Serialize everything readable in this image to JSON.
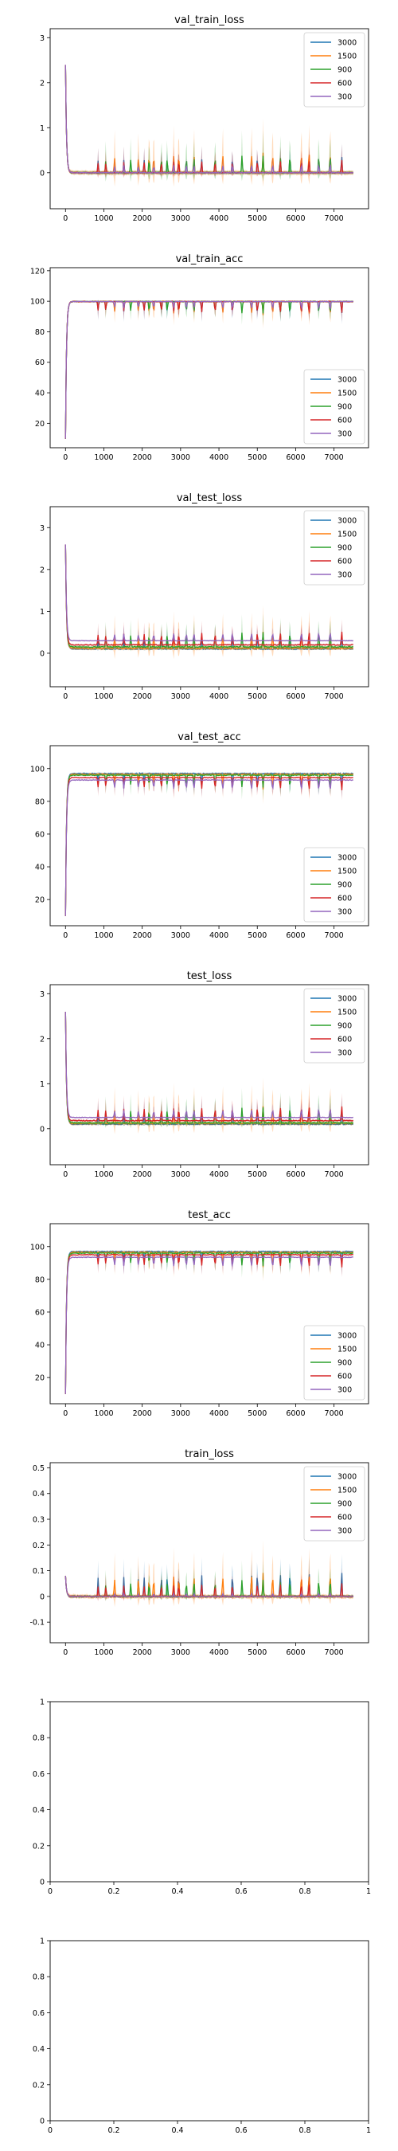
{
  "figure": {
    "series_names": [
      "3000",
      "1500",
      "900",
      "600",
      "300"
    ],
    "series_colors": [
      "#1f77b4",
      "#ff7f0e",
      "#2ca02c",
      "#d62728",
      "#9467bd"
    ]
  },
  "chart_data": [
    {
      "type": "line",
      "title": "val_train_loss",
      "xlim": [
        -400,
        7900
      ],
      "ylim": [
        -0.8,
        3.2
      ],
      "xticks": [
        0,
        1000,
        2000,
        3000,
        4000,
        5000,
        6000,
        7000
      ],
      "yticks": [
        0,
        1,
        2,
        3
      ],
      "legend": "top-right",
      "series": [
        {
          "name": "3000",
          "start": 2.4,
          "final": 0.0,
          "spike": 0.55,
          "band": 0.5
        },
        {
          "name": "1500",
          "start": 2.4,
          "final": 0.0,
          "spike": 0.7,
          "band": 1.2
        },
        {
          "name": "900",
          "start": 2.4,
          "final": 0.0,
          "spike": 0.6,
          "band": 0.9
        },
        {
          "name": "600",
          "start": 2.4,
          "final": 0.0,
          "spike": 0.45,
          "band": 0.6
        },
        {
          "name": "300",
          "start": 2.4,
          "final": 0.0,
          "spike": 0.3,
          "band": 0.4
        }
      ]
    },
    {
      "type": "line",
      "title": "val_train_acc",
      "xlim": [
        -400,
        7900
      ],
      "ylim": [
        4,
        122
      ],
      "xticks": [
        0,
        1000,
        2000,
        3000,
        4000,
        5000,
        6000,
        7000
      ],
      "yticks": [
        20,
        40,
        60,
        80,
        100,
        120
      ],
      "legend": "bottom-right",
      "series": [
        {
          "name": "3000",
          "start": 10,
          "final": 99.8,
          "spike": -12,
          "band": 12
        },
        {
          "name": "1500",
          "start": 10,
          "final": 99.8,
          "spike": -14,
          "band": 14
        },
        {
          "name": "900",
          "start": 10,
          "final": 99.8,
          "spike": -12,
          "band": 12
        },
        {
          "name": "600",
          "start": 10,
          "final": 99.8,
          "spike": -12,
          "band": 10
        },
        {
          "name": "300",
          "start": 10,
          "final": 99.8,
          "spike": -8,
          "band": 8
        }
      ]
    },
    {
      "type": "line",
      "title": "val_test_loss",
      "xlim": [
        -400,
        7900
      ],
      "ylim": [
        -0.8,
        3.5
      ],
      "xticks": [
        0,
        1000,
        2000,
        3000,
        4000,
        5000,
        6000,
        7000
      ],
      "yticks": [
        0,
        1,
        2,
        3
      ],
      "legend": "top-right",
      "series": [
        {
          "name": "3000",
          "start": 2.6,
          "final": 0.1,
          "spike": 0.5,
          "band": 0.5
        },
        {
          "name": "1500",
          "start": 2.6,
          "final": 0.12,
          "spike": 0.6,
          "band": 1.0
        },
        {
          "name": "900",
          "start": 2.6,
          "final": 0.15,
          "spike": 0.55,
          "band": 0.7
        },
        {
          "name": "600",
          "start": 2.6,
          "final": 0.2,
          "spike": 0.5,
          "band": 0.5
        },
        {
          "name": "300",
          "start": 2.6,
          "final": 0.3,
          "spike": 0.3,
          "band": 0.35
        }
      ]
    },
    {
      "type": "line",
      "title": "val_test_acc",
      "xlim": [
        -400,
        7900
      ],
      "ylim": [
        4,
        114
      ],
      "xticks": [
        0,
        1000,
        2000,
        3000,
        4000,
        5000,
        6000,
        7000
      ],
      "yticks": [
        20,
        40,
        60,
        80,
        100
      ],
      "legend": "bottom-right",
      "series": [
        {
          "name": "3000",
          "start": 10,
          "final": 97,
          "spike": -12,
          "band": 12
        },
        {
          "name": "1500",
          "start": 10,
          "final": 96.5,
          "spike": -14,
          "band": 14
        },
        {
          "name": "900",
          "start": 10,
          "final": 96,
          "spike": -12,
          "band": 12
        },
        {
          "name": "600",
          "start": 10,
          "final": 94.5,
          "spike": -12,
          "band": 10
        },
        {
          "name": "300",
          "start": 10,
          "final": 93,
          "spike": -10,
          "band": 9
        }
      ]
    },
    {
      "type": "line",
      "title": "test_loss",
      "xlim": [
        -400,
        7900
      ],
      "ylim": [
        -0.8,
        3.2
      ],
      "xticks": [
        0,
        1000,
        2000,
        3000,
        4000,
        5000,
        6000,
        7000
      ],
      "yticks": [
        0,
        1,
        2,
        3
      ],
      "legend": "top-right",
      "series": [
        {
          "name": "3000",
          "start": 2.6,
          "final": 0.1,
          "spike": 0.5,
          "band": 0.5
        },
        {
          "name": "1500",
          "start": 2.6,
          "final": 0.12,
          "spike": 0.6,
          "band": 1.0
        },
        {
          "name": "900",
          "start": 2.6,
          "final": 0.13,
          "spike": 0.55,
          "band": 0.7
        },
        {
          "name": "600",
          "start": 2.6,
          "final": 0.18,
          "spike": 0.5,
          "band": 0.5
        },
        {
          "name": "300",
          "start": 2.6,
          "final": 0.25,
          "spike": 0.3,
          "band": 0.35
        }
      ]
    },
    {
      "type": "line",
      "title": "test_acc",
      "xlim": [
        -400,
        7900
      ],
      "ylim": [
        4,
        114
      ],
      "xticks": [
        0,
        1000,
        2000,
        3000,
        4000,
        5000,
        6000,
        7000
      ],
      "yticks": [
        20,
        40,
        60,
        80,
        100
      ],
      "legend": "bottom-right",
      "series": [
        {
          "name": "3000",
          "start": 10,
          "final": 97,
          "spike": -12,
          "band": 12
        },
        {
          "name": "1500",
          "start": 10,
          "final": 96.5,
          "spike": -14,
          "band": 14
        },
        {
          "name": "900",
          "start": 10,
          "final": 96,
          "spike": -12,
          "band": 12
        },
        {
          "name": "600",
          "start": 10,
          "final": 95,
          "spike": -12,
          "band": 10
        },
        {
          "name": "300",
          "start": 10,
          "final": 93.5,
          "spike": -10,
          "band": 9
        }
      ]
    },
    {
      "type": "line",
      "title": "train_loss",
      "xlim": [
        -400,
        7900
      ],
      "ylim": [
        -0.18,
        0.52
      ],
      "xticks": [
        0,
        1000,
        2000,
        3000,
        4000,
        5000,
        6000,
        7000
      ],
      "yticks": [
        -0.1,
        0.0,
        0.1,
        0.2,
        0.3,
        0.4,
        0.5
      ],
      "legend": "top-right",
      "series": [
        {
          "name": "3000",
          "start": 0.08,
          "final": 0.0,
          "spike": 0.15,
          "band": 0.12
        },
        {
          "name": "1500",
          "start": 0.08,
          "final": 0.0,
          "spike": 0.14,
          "band": 0.2
        },
        {
          "name": "900",
          "start": 0.08,
          "final": 0.0,
          "spike": 0.1,
          "band": 0.12
        },
        {
          "name": "600",
          "start": 0.08,
          "final": 0.0,
          "spike": 0.08,
          "band": 0.1
        },
        {
          "name": "300",
          "start": 0.08,
          "final": 0.0,
          "spike": 0.02,
          "band": 0.03
        }
      ]
    },
    {
      "type": "line",
      "title": "",
      "xlim": [
        0,
        1
      ],
      "ylim": [
        0,
        1
      ],
      "xticks": [
        0.0,
        0.2,
        0.4,
        0.6,
        0.8,
        1.0
      ],
      "yticks": [
        0.0,
        0.2,
        0.4,
        0.6,
        0.8,
        1.0
      ],
      "legend": "none",
      "series": []
    },
    {
      "type": "line",
      "title": "",
      "xlim": [
        0,
        1
      ],
      "ylim": [
        0,
        1
      ],
      "xticks": [
        0.0,
        0.2,
        0.4,
        0.6,
        0.8,
        1.0
      ],
      "yticks": [
        0.0,
        0.2,
        0.4,
        0.6,
        0.8,
        1.0
      ],
      "legend": "none",
      "series": []
    }
  ]
}
